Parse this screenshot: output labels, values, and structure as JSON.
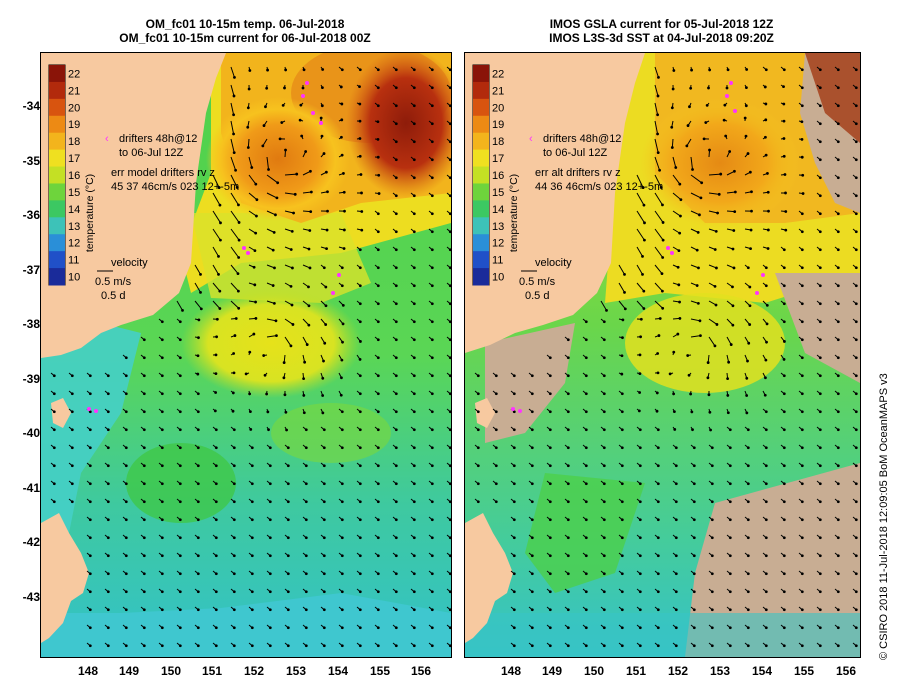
{
  "left_panel": {
    "title_line1": "OM_fc01 10-15m temp. 06-Jul-2018",
    "title_line2": "OM_fc01 10-15m current for 06-Jul-2018 00Z",
    "drifters_line1": "drifters 48h@12",
    "drifters_line2": "to 06-Jul 12Z",
    "err_line1": "err model drifters rv z",
    "err_line2": "45 37 46cm/s 023 12+-5m",
    "velocity_title": "velocity",
    "velocity_scale1": "0.5 m/s",
    "velocity_scale2": "0.5 d"
  },
  "right_panel": {
    "title_line1": "IMOS GSLA current for 05-Jul-2018 12Z",
    "title_line2": "IMOS L3S-3d SST at 04-Jul-2018 09:20Z",
    "drifters_line1": "drifters 48h@12",
    "drifters_line2": "to 06-Jul 12Z",
    "err_line1": "err alt drifters rv z",
    "err_line2": "44 36 46cm/s 023 12+-5m",
    "velocity_title": "velocity",
    "velocity_scale1": "0.5 m/s",
    "velocity_scale2": "0.5 d"
  },
  "colorbar": {
    "label": "temperature (°C)",
    "ticks": [
      "22",
      "21",
      "20",
      "19",
      "18",
      "17",
      "16",
      "15",
      "14",
      "13",
      "12",
      "11",
      "10"
    ]
  },
  "axes": {
    "lat_ticks": [
      "-34",
      "-35",
      "-36",
      "-37",
      "-38",
      "-39",
      "-40",
      "-41",
      "-42",
      "-43"
    ],
    "lon_ticks": [
      "148",
      "149",
      "150",
      "151",
      "152",
      "153",
      "154",
      "155",
      "156"
    ]
  },
  "credit": "© CSIRO 2018   11-Jul-2018 12:09:05 BoM OceanMAPS v3",
  "colors": {
    "land": "#f7c9a0",
    "missing_sst": "#c8ad93",
    "drifter": "#ff33ff",
    "cold": "#1a2b9a",
    "warm": "#9a1a0a"
  }
}
